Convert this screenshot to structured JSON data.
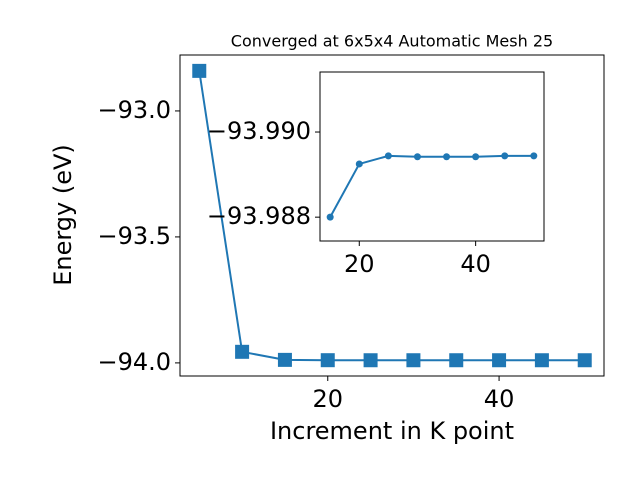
{
  "chart_data": [
    {
      "type": "line",
      "title": "Converged at 6x5x4 Automatic Mesh 25",
      "x_label": "Increment in K point",
      "y_label": "Energy (eV)",
      "x": [
        5,
        10,
        15,
        20,
        25,
        30,
        35,
        40,
        45,
        50
      ],
      "series": [
        {
          "color": "#1f77b4",
          "marker": "square",
          "values": [
            -92.841,
            -93.956,
            -93.988,
            -93.98925,
            -93.98944,
            -93.98942,
            -93.98942,
            -93.98942,
            -93.98944,
            -93.98944
          ]
        }
      ],
      "xlim": [
        2.75,
        52.25
      ],
      "ylim": [
        -94.052,
        -92.778
      ],
      "xticks": [
        20,
        40
      ],
      "yticks": [
        {
          "value": -94.0,
          "label": "−94.0"
        },
        {
          "value": -93.5,
          "label": "−93.5"
        },
        {
          "value": -93.0,
          "label": "−93.0"
        }
      ]
    },
    {
      "type": "line",
      "x": [
        15,
        20,
        25,
        30,
        35,
        40,
        45,
        50
      ],
      "series": [
        {
          "color": "#1f77b4",
          "marker": "circle",
          "values": [
            -93.988,
            -93.98925,
            -93.98944,
            -93.98942,
            -93.98942,
            -93.98942,
            -93.98944,
            -93.98944
          ]
        }
      ],
      "xlim": [
        13.25,
        51.75
      ],
      "ylim": [
        -93.98744,
        -93.99141
      ],
      "xticks": [
        20,
        40
      ],
      "yticks": [
        {
          "value": -93.988,
          "label": "−93.988"
        },
        {
          "value": -93.99,
          "label": "−93.990"
        }
      ]
    }
  ]
}
